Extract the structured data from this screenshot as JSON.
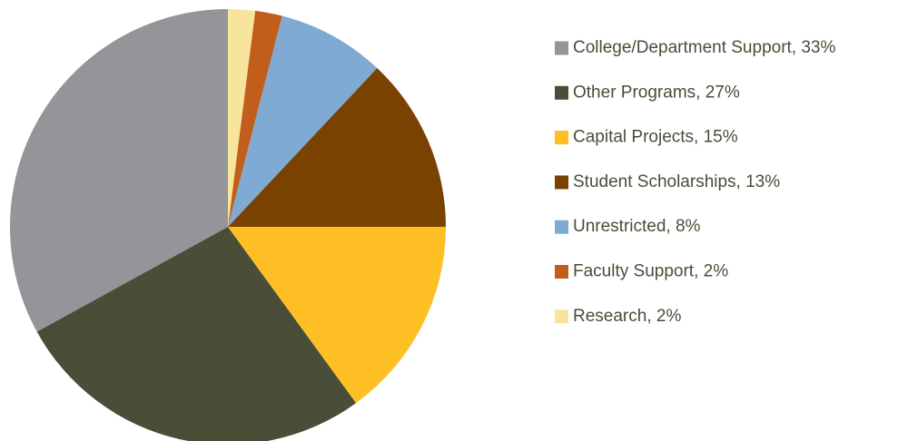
{
  "chart_data": {
    "type": "pie",
    "categories": [
      "College/Department Support, 33%",
      "Other Programs, 27%",
      "Capital Projects, 15%",
      "Student Scholarships, 13%",
      "Unrestricted, 8%",
      "Faculty Support, 2%",
      "Research, 2%"
    ],
    "values": [
      33,
      27,
      15,
      13,
      8,
      2,
      2
    ],
    "colors": [
      "#939598",
      "#4a4d38",
      "#fdbf24",
      "#7a4200",
      "#7eaad4",
      "#c25e1c",
      "#f7e59e"
    ],
    "legend": "right"
  }
}
